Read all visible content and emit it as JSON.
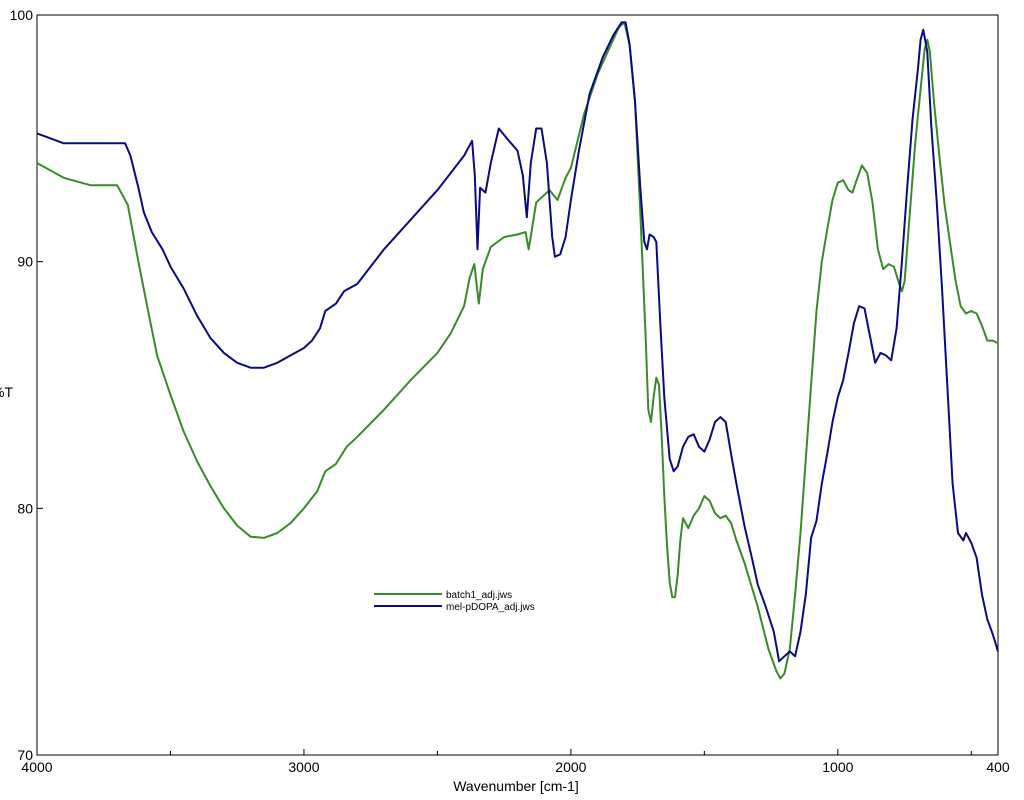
{
  "chart_data": {
    "type": "line",
    "title": "",
    "xlabel": "Wavenumber [cm-1]",
    "ylabel": "%T",
    "xlim": [
      4000,
      400
    ],
    "x_reversed": true,
    "ylim": [
      70,
      100
    ],
    "grid": false,
    "legend_placement": "lower-center",
    "x_ticks": [
      4000,
      3000,
      2000,
      1000,
      400
    ],
    "x_minor_ticks": [
      3500,
      2500,
      1500,
      500
    ],
    "y_ticks": [
      70,
      80,
      90,
      100
    ],
    "y_tick_labels": [
      "70",
      "80",
      "90",
      "100"
    ],
    "series": [
      {
        "name": "batch1_adj.jws",
        "color": "#3a8a2a",
        "points": [
          [
            4000,
            94.0
          ],
          [
            3900,
            93.4
          ],
          [
            3800,
            93.1
          ],
          [
            3700,
            93.1
          ],
          [
            3660,
            92.3
          ],
          [
            3620,
            90.0
          ],
          [
            3580,
            87.8
          ],
          [
            3550,
            86.2
          ],
          [
            3500,
            84.6
          ],
          [
            3450,
            83.1
          ],
          [
            3400,
            81.9
          ],
          [
            3350,
            80.9
          ],
          [
            3300,
            80.0
          ],
          [
            3250,
            79.3
          ],
          [
            3200,
            78.85
          ],
          [
            3150,
            78.8
          ],
          [
            3100,
            79.0
          ],
          [
            3050,
            79.4
          ],
          [
            3000,
            80.0
          ],
          [
            2950,
            80.7
          ],
          [
            2920,
            81.5
          ],
          [
            2880,
            81.8
          ],
          [
            2840,
            82.5
          ],
          [
            2800,
            82.9
          ],
          [
            2700,
            84.0
          ],
          [
            2600,
            85.2
          ],
          [
            2500,
            86.3
          ],
          [
            2450,
            87.1
          ],
          [
            2400,
            88.2
          ],
          [
            2380,
            89.3
          ],
          [
            2362,
            89.9
          ],
          [
            2345,
            88.3
          ],
          [
            2330,
            89.7
          ],
          [
            2300,
            90.6
          ],
          [
            2250,
            91.0
          ],
          [
            2200,
            91.1
          ],
          [
            2170,
            91.2
          ],
          [
            2158,
            90.5
          ],
          [
            2130,
            92.4
          ],
          [
            2080,
            92.9
          ],
          [
            2050,
            92.5
          ],
          [
            2020,
            93.4
          ],
          [
            2000,
            93.8
          ],
          [
            1950,
            96.0
          ],
          [
            1900,
            97.6
          ],
          [
            1850,
            98.8
          ],
          [
            1820,
            99.5
          ],
          [
            1800,
            99.7
          ],
          [
            1780,
            98.8
          ],
          [
            1760,
            96.5
          ],
          [
            1740,
            92.0
          ],
          [
            1720,
            87.0
          ],
          [
            1710,
            84.0
          ],
          [
            1700,
            83.5
          ],
          [
            1690,
            84.5
          ],
          [
            1680,
            85.3
          ],
          [
            1670,
            85.0
          ],
          [
            1660,
            83.0
          ],
          [
            1650,
            80.5
          ],
          [
            1640,
            78.5
          ],
          [
            1630,
            77.0
          ],
          [
            1620,
            76.4
          ],
          [
            1610,
            76.4
          ],
          [
            1600,
            77.3
          ],
          [
            1590,
            78.7
          ],
          [
            1580,
            79.6
          ],
          [
            1560,
            79.2
          ],
          [
            1540,
            79.7
          ],
          [
            1520,
            80.0
          ],
          [
            1500,
            80.5
          ],
          [
            1480,
            80.3
          ],
          [
            1460,
            79.8
          ],
          [
            1440,
            79.6
          ],
          [
            1420,
            79.7
          ],
          [
            1400,
            79.4
          ],
          [
            1380,
            78.7
          ],
          [
            1350,
            77.8
          ],
          [
            1300,
            76.0
          ],
          [
            1260,
            74.3
          ],
          [
            1230,
            73.4
          ],
          [
            1215,
            73.1
          ],
          [
            1200,
            73.3
          ],
          [
            1180,
            74.3
          ],
          [
            1160,
            76.5
          ],
          [
            1140,
            79.0
          ],
          [
            1120,
            82.0
          ],
          [
            1100,
            85.0
          ],
          [
            1080,
            88.0
          ],
          [
            1060,
            90.0
          ],
          [
            1040,
            91.3
          ],
          [
            1020,
            92.5
          ],
          [
            1000,
            93.2
          ],
          [
            980,
            93.3
          ],
          [
            960,
            92.9
          ],
          [
            945,
            92.8
          ],
          [
            930,
            93.3
          ],
          [
            910,
            93.9
          ],
          [
            890,
            93.6
          ],
          [
            870,
            92.4
          ],
          [
            850,
            90.5
          ],
          [
            830,
            89.7
          ],
          [
            810,
            89.9
          ],
          [
            790,
            89.8
          ],
          [
            770,
            89.1
          ],
          [
            760,
            88.8
          ],
          [
            750,
            89.2
          ],
          [
            730,
            92.0
          ],
          [
            710,
            94.8
          ],
          [
            690,
            97.0
          ],
          [
            675,
            98.6
          ],
          [
            665,
            99.0
          ],
          [
            655,
            98.5
          ],
          [
            640,
            96.5
          ],
          [
            620,
            94.3
          ],
          [
            600,
            92.3
          ],
          [
            580,
            90.8
          ],
          [
            560,
            89.3
          ],
          [
            540,
            88.2
          ],
          [
            520,
            87.9
          ],
          [
            500,
            88.0
          ],
          [
            480,
            87.9
          ],
          [
            460,
            87.4
          ],
          [
            440,
            86.8
          ],
          [
            420,
            86.8
          ],
          [
            400,
            86.7
          ]
        ]
      },
      {
        "name": "mel-pDOPA_adj.jws",
        "color": "#0a0a82",
        "points": [
          [
            4000,
            95.2
          ],
          [
            3950,
            95.0
          ],
          [
            3900,
            94.8
          ],
          [
            3800,
            94.8
          ],
          [
            3750,
            94.8
          ],
          [
            3700,
            94.8
          ],
          [
            3670,
            94.8
          ],
          [
            3650,
            94.3
          ],
          [
            3620,
            93.0
          ],
          [
            3600,
            92.0
          ],
          [
            3570,
            91.2
          ],
          [
            3530,
            90.5
          ],
          [
            3500,
            89.8
          ],
          [
            3450,
            88.9
          ],
          [
            3400,
            87.8
          ],
          [
            3350,
            86.9
          ],
          [
            3300,
            86.3
          ],
          [
            3250,
            85.9
          ],
          [
            3200,
            85.7
          ],
          [
            3150,
            85.7
          ],
          [
            3100,
            85.9
          ],
          [
            3050,
            86.2
          ],
          [
            3000,
            86.5
          ],
          [
            2970,
            86.8
          ],
          [
            2940,
            87.3
          ],
          [
            2920,
            88.0
          ],
          [
            2880,
            88.3
          ],
          [
            2850,
            88.8
          ],
          [
            2800,
            89.1
          ],
          [
            2700,
            90.5
          ],
          [
            2600,
            91.7
          ],
          [
            2500,
            92.9
          ],
          [
            2450,
            93.6
          ],
          [
            2400,
            94.3
          ],
          [
            2370,
            94.9
          ],
          [
            2360,
            93.5
          ],
          [
            2350,
            90.5
          ],
          [
            2340,
            93.0
          ],
          [
            2320,
            92.8
          ],
          [
            2300,
            94.0
          ],
          [
            2270,
            95.4
          ],
          [
            2240,
            95.0
          ],
          [
            2200,
            94.5
          ],
          [
            2180,
            93.5
          ],
          [
            2165,
            91.8
          ],
          [
            2150,
            94.0
          ],
          [
            2130,
            95.4
          ],
          [
            2110,
            95.4
          ],
          [
            2090,
            94.0
          ],
          [
            2070,
            91.0
          ],
          [
            2060,
            90.2
          ],
          [
            2040,
            90.3
          ],
          [
            2020,
            91.0
          ],
          [
            2000,
            92.5
          ],
          [
            1970,
            94.5
          ],
          [
            1930,
            96.8
          ],
          [
            1880,
            98.3
          ],
          [
            1840,
            99.2
          ],
          [
            1810,
            99.7
          ],
          [
            1795,
            99.7
          ],
          [
            1780,
            98.8
          ],
          [
            1760,
            96.5
          ],
          [
            1740,
            93.0
          ],
          [
            1725,
            90.8
          ],
          [
            1715,
            90.5
          ],
          [
            1705,
            91.1
          ],
          [
            1690,
            91.0
          ],
          [
            1680,
            90.8
          ],
          [
            1665,
            87.5
          ],
          [
            1650,
            84.5
          ],
          [
            1630,
            82.0
          ],
          [
            1615,
            81.5
          ],
          [
            1600,
            81.7
          ],
          [
            1580,
            82.5
          ],
          [
            1560,
            82.9
          ],
          [
            1540,
            83.0
          ],
          [
            1520,
            82.5
          ],
          [
            1500,
            82.3
          ],
          [
            1480,
            82.8
          ],
          [
            1460,
            83.5
          ],
          [
            1440,
            83.7
          ],
          [
            1420,
            83.5
          ],
          [
            1400,
            82.2
          ],
          [
            1380,
            81.0
          ],
          [
            1350,
            79.3
          ],
          [
            1320,
            77.9
          ],
          [
            1300,
            76.9
          ],
          [
            1270,
            76.0
          ],
          [
            1240,
            75.0
          ],
          [
            1220,
            73.8
          ],
          [
            1200,
            74.0
          ],
          [
            1180,
            74.2
          ],
          [
            1160,
            74.0
          ],
          [
            1140,
            75.0
          ],
          [
            1120,
            76.5
          ],
          [
            1100,
            78.8
          ],
          [
            1080,
            79.5
          ],
          [
            1060,
            81.0
          ],
          [
            1040,
            82.2
          ],
          [
            1020,
            83.5
          ],
          [
            1000,
            84.5
          ],
          [
            980,
            85.2
          ],
          [
            960,
            86.3
          ],
          [
            940,
            87.5
          ],
          [
            920,
            88.2
          ],
          [
            900,
            88.1
          ],
          [
            880,
            87.0
          ],
          [
            860,
            85.9
          ],
          [
            840,
            86.3
          ],
          [
            820,
            86.2
          ],
          [
            800,
            86.0
          ],
          [
            780,
            87.3
          ],
          [
            760,
            90.0
          ],
          [
            740,
            93.0
          ],
          [
            720,
            95.8
          ],
          [
            700,
            97.8
          ],
          [
            690,
            99.0
          ],
          [
            680,
            99.4
          ],
          [
            665,
            98.5
          ],
          [
            650,
            95.5
          ],
          [
            630,
            92.5
          ],
          [
            610,
            89.0
          ],
          [
            590,
            85.0
          ],
          [
            570,
            81.0
          ],
          [
            550,
            79.0
          ],
          [
            530,
            78.7
          ],
          [
            520,
            79.0
          ],
          [
            500,
            78.6
          ],
          [
            480,
            78.0
          ],
          [
            460,
            76.5
          ],
          [
            440,
            75.5
          ],
          [
            420,
            74.9
          ],
          [
            400,
            74.2
          ]
        ]
      }
    ]
  }
}
